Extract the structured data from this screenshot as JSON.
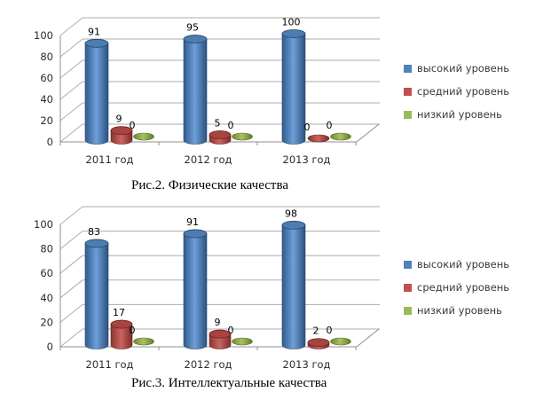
{
  "styles": {
    "background": "#ffffff",
    "grid_color": "#adadad",
    "axis_color": "#8f8f8f",
    "tick_label_color": "#2b2b2b",
    "data_label_color": "#000000",
    "legend_text_color": "#3a3a3a",
    "series_colors": {
      "high": "#4f81bd",
      "mid": "#c0504d",
      "low": "#9bbb59"
    }
  },
  "chart_data": [
    {
      "type": "bar",
      "subtype": "3d-cylinder-column",
      "title": "Рис.2. Физические качества",
      "categories": [
        "2011 год",
        "2012 год",
        "2013 год"
      ],
      "series": [
        {
          "name": "высокий уровень",
          "color": "#4f81bd",
          "values": [
            91,
            95,
            100
          ]
        },
        {
          "name": "средний уровень",
          "color": "#c0504d",
          "values": [
            9,
            5,
            0
          ]
        },
        {
          "name": "низкий уровень",
          "color": "#9bbb59",
          "values": [
            0,
            0,
            0
          ]
        }
      ],
      "xlabel": "",
      "ylabel": "",
      "ylim": [
        0,
        100
      ],
      "yticks": [
        0,
        20,
        40,
        60,
        80,
        100
      ],
      "grid": true,
      "data_labels": true,
      "legend_position": "right"
    },
    {
      "type": "bar",
      "subtype": "3d-cylinder-column",
      "title": "Рис.3. Интеллектуальные качества",
      "categories": [
        "2011 год",
        "2012 год",
        "2013 год"
      ],
      "series": [
        {
          "name": "высокий уровень",
          "color": "#4f81bd",
          "values": [
            83,
            91,
            98
          ]
        },
        {
          "name": "средний уровень",
          "color": "#c0504d",
          "values": [
            17,
            9,
            2
          ]
        },
        {
          "name": "низкий уровень",
          "color": "#9bbb59",
          "values": [
            0,
            0,
            0
          ]
        }
      ],
      "xlabel": "",
      "ylabel": "",
      "ylim": [
        0,
        100
      ],
      "yticks": [
        0,
        20,
        40,
        60,
        80,
        100
      ],
      "grid": true,
      "data_labels": true,
      "legend_position": "right"
    }
  ]
}
